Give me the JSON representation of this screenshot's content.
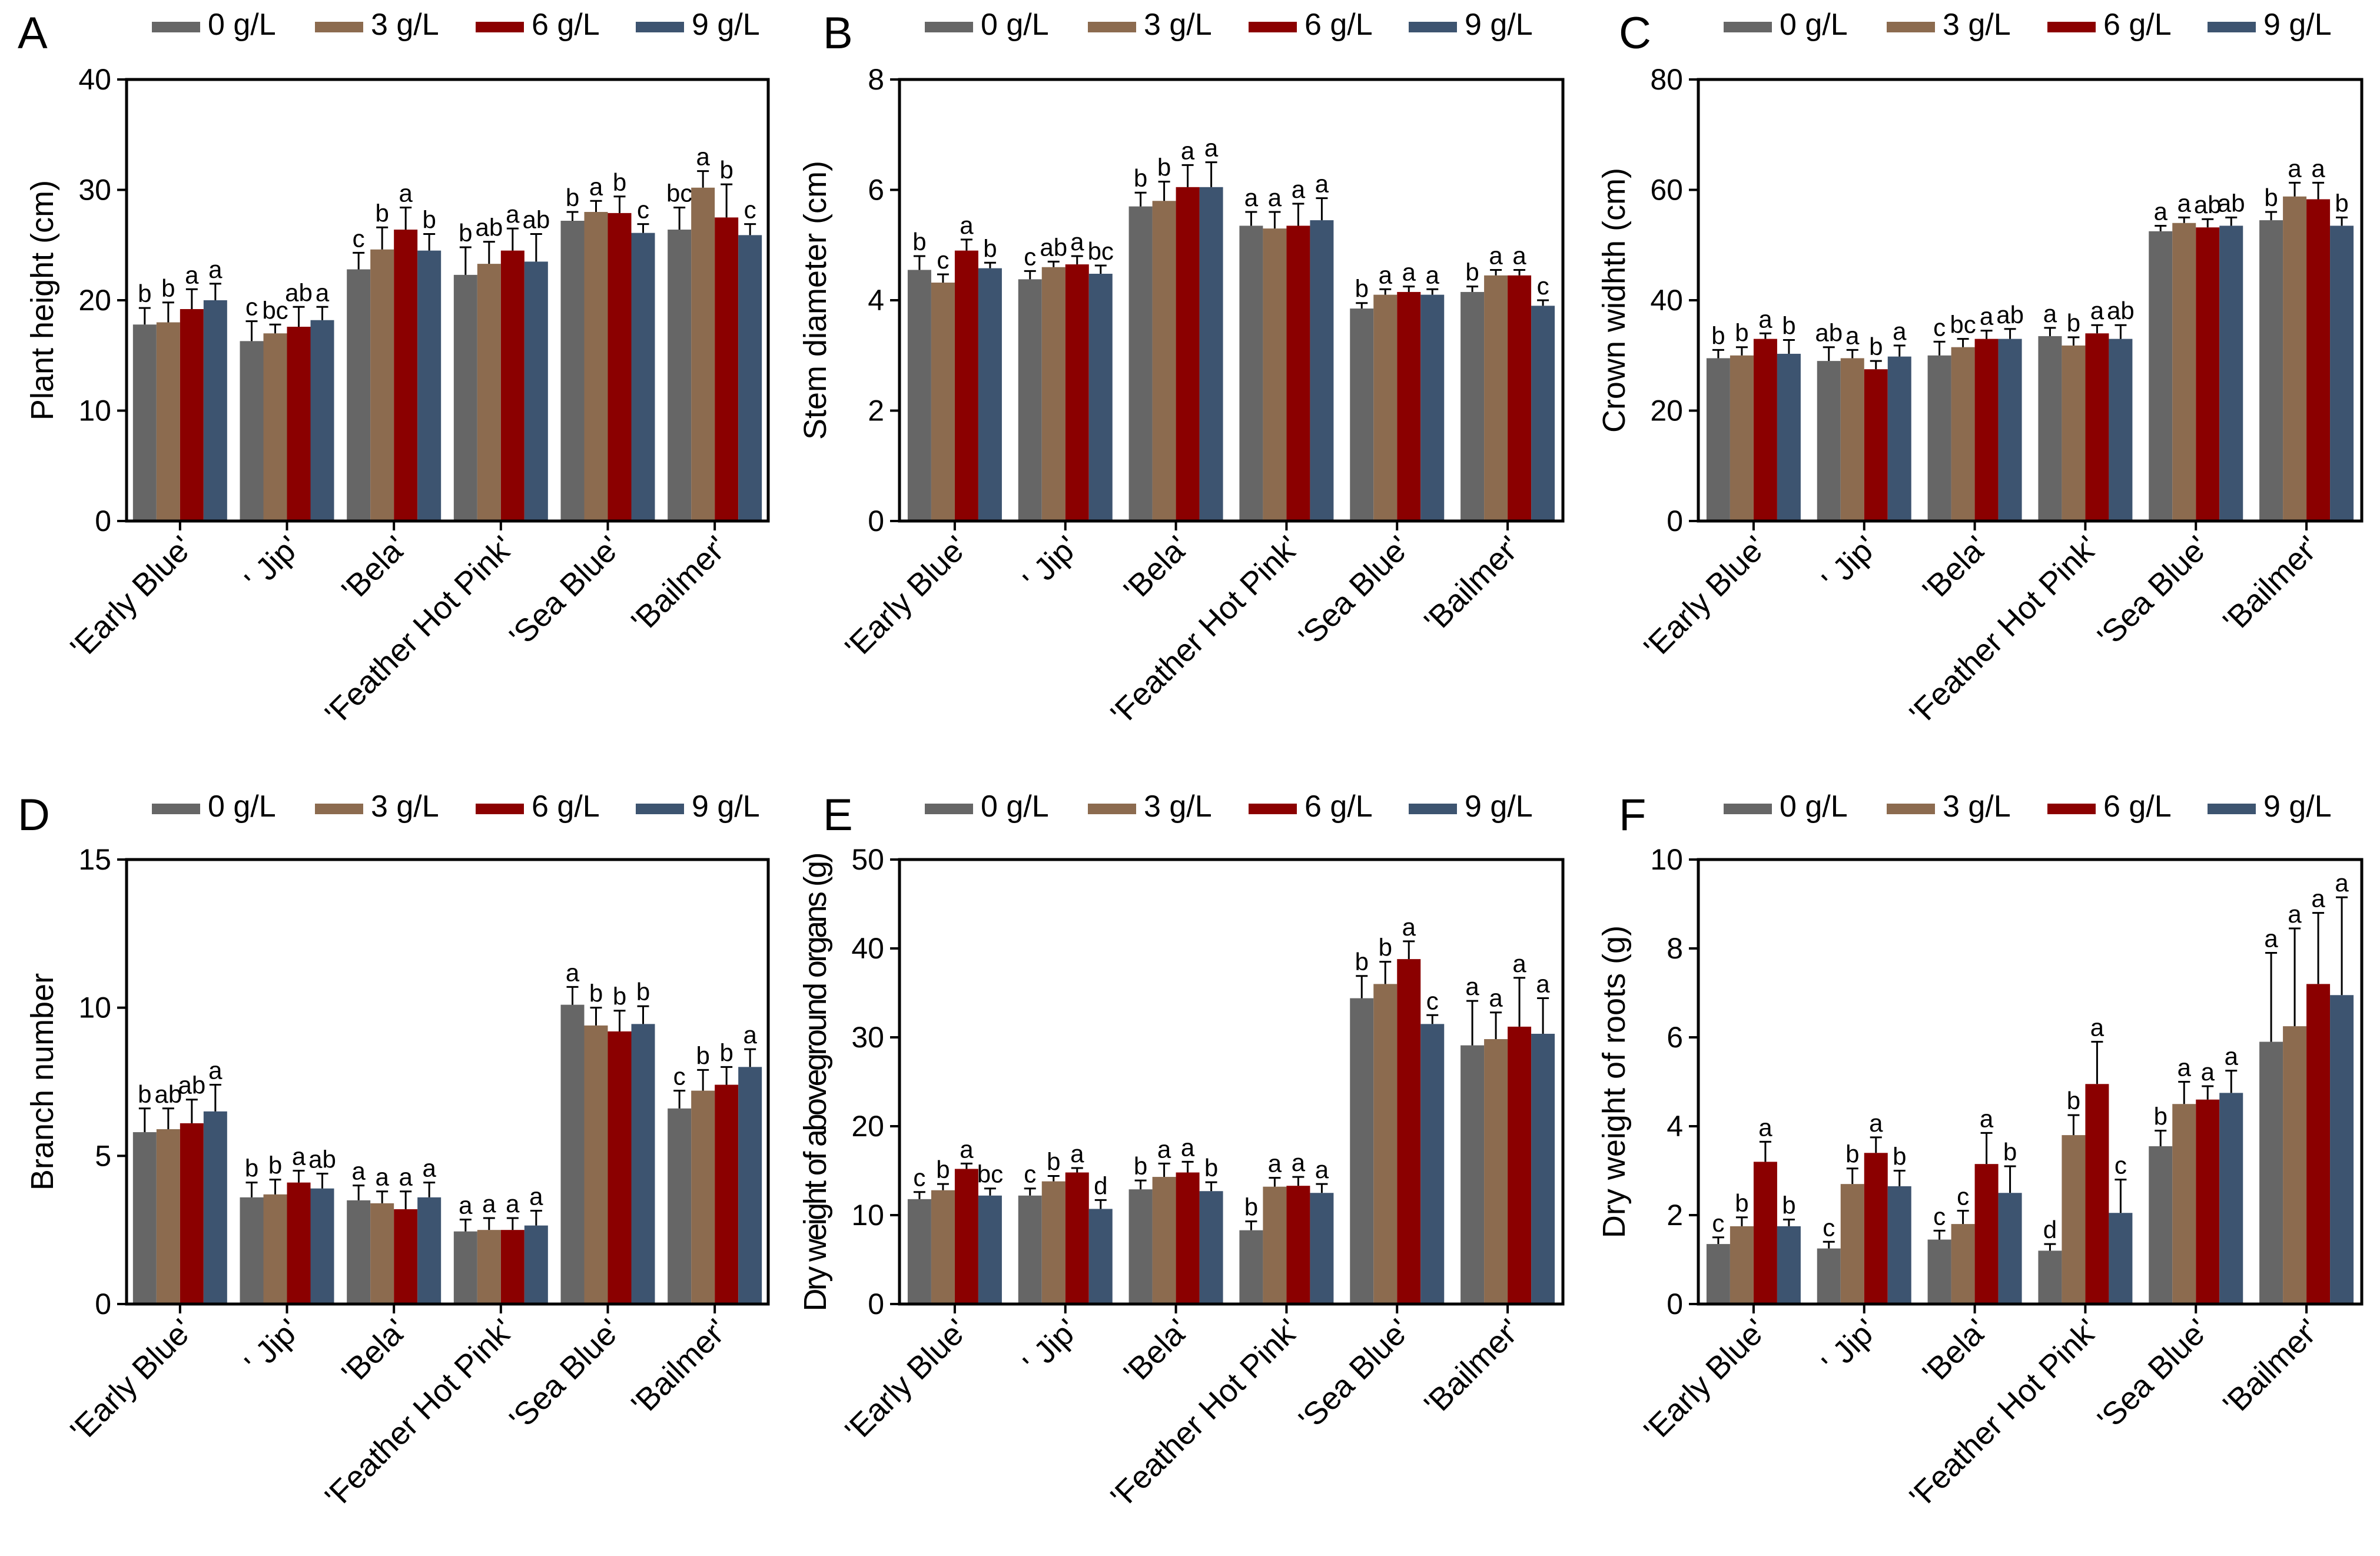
{
  "legend": [
    "0 g/L",
    "3 g/L",
    "6 g/L",
    "9 g/L"
  ],
  "series_colors": [
    "#666666",
    "#8C6B4F",
    "#8B0000",
    "#3D5470"
  ],
  "chart_data": [
    {
      "panel": "A",
      "type": "bar",
      "ylabel": "Plant height (cm)",
      "ylim": [
        0,
        40
      ],
      "yticks": [
        0,
        10,
        20,
        30,
        40
      ],
      "categories": [
        "'Early Blue'",
        "' Jip'",
        "'Bela'",
        "'Feather Hot Pink'",
        "'Sea Blue'",
        "'Bailmer'"
      ],
      "series": [
        {
          "name": "0 g/L",
          "values": [
            17.8,
            16.3,
            22.8,
            22.3,
            27.2,
            26.4
          ],
          "errors": [
            1.5,
            1.8,
            1.5,
            2.5,
            0.8,
            2.0
          ],
          "letters": [
            "b",
            "c",
            "c",
            "b",
            "b",
            "bc"
          ]
        },
        {
          "name": "3 g/L",
          "values": [
            18.0,
            17.0,
            24.6,
            23.3,
            28.0,
            30.2
          ],
          "errors": [
            1.8,
            0.8,
            2.0,
            2.0,
            1.0,
            1.5
          ],
          "letters": [
            "b",
            "bc",
            "b",
            "ab",
            "a",
            "a"
          ]
        },
        {
          "name": "6 g/L",
          "values": [
            19.2,
            17.6,
            26.4,
            24.5,
            27.9,
            27.5
          ],
          "errors": [
            1.8,
            1.8,
            2.0,
            2.0,
            1.5,
            3.0
          ],
          "letters": [
            "a",
            "ab",
            "a",
            "a",
            "b",
            "b"
          ]
        },
        {
          "name": "9 g/L",
          "values": [
            20.0,
            18.2,
            24.5,
            23.5,
            26.1,
            25.9
          ],
          "errors": [
            1.5,
            1.2,
            1.5,
            2.5,
            0.8,
            1.0
          ],
          "letters": [
            "a",
            "a",
            "b",
            "ab",
            "c",
            "c"
          ]
        }
      ]
    },
    {
      "panel": "B",
      "type": "bar",
      "ylabel": "Stem diameter  (cm)",
      "ylim": [
        0,
        8
      ],
      "yticks": [
        0,
        2,
        4,
        6,
        8
      ],
      "categories": [
        "'Early Blue'",
        "' Jip'",
        "'Bela'",
        "'Feather Hot Pink'",
        "'Sea Blue'",
        "'Bailmer'"
      ],
      "series": [
        {
          "name": "0 g/L",
          "values": [
            4.55,
            4.38,
            5.7,
            5.35,
            3.85,
            4.15
          ],
          "errors": [
            0.25,
            0.15,
            0.25,
            0.25,
            0.1,
            0.1
          ],
          "letters": [
            "b",
            "c",
            "b",
            "a",
            "b",
            "b"
          ]
        },
        {
          "name": "3 g/L",
          "values": [
            4.32,
            4.6,
            5.8,
            5.3,
            4.1,
            4.45
          ],
          "errors": [
            0.15,
            0.1,
            0.35,
            0.3,
            0.1,
            0.1
          ],
          "letters": [
            "c",
            "ab",
            "b",
            "a",
            "a",
            "a"
          ]
        },
        {
          "name": "6 g/L",
          "values": [
            4.9,
            4.65,
            6.05,
            5.35,
            4.15,
            4.45
          ],
          "errors": [
            0.2,
            0.15,
            0.4,
            0.4,
            0.1,
            0.1
          ],
          "letters": [
            "a",
            "a",
            "a",
            "a",
            "a",
            "a"
          ]
        },
        {
          "name": "9 g/L",
          "values": [
            4.58,
            4.48,
            6.05,
            5.45,
            4.1,
            3.9
          ],
          "errors": [
            0.1,
            0.15,
            0.45,
            0.4,
            0.1,
            0.1
          ],
          "letters": [
            "b",
            "bc",
            "a",
            "a",
            "a",
            "c"
          ]
        }
      ]
    },
    {
      "panel": "C",
      "type": "bar",
      "ylabel": "Crown widhth (cm)",
      "ylim": [
        0,
        80
      ],
      "yticks": [
        0,
        20,
        40,
        60,
        80
      ],
      "categories": [
        "'Early Blue'",
        "' Jip'",
        "'Bela'",
        "'Feather Hot Pink'",
        "'Sea Blue'",
        "'Bailmer'"
      ],
      "series": [
        {
          "name": "0 g/L",
          "values": [
            29.5,
            29.0,
            30.0,
            33.5,
            52.5,
            54.5
          ],
          "errors": [
            1.5,
            2.5,
            2.5,
            1.5,
            1.0,
            1.5
          ],
          "letters": [
            "b",
            "ab",
            "c",
            "a",
            "a",
            "b"
          ]
        },
        {
          "name": "3 g/L",
          "values": [
            30.0,
            29.5,
            31.5,
            31.8,
            54.0,
            58.8
          ],
          "errors": [
            1.5,
            1.5,
            1.5,
            1.5,
            1.0,
            2.5
          ],
          "letters": [
            "b",
            "a",
            "bc",
            "b",
            "a",
            "a"
          ]
        },
        {
          "name": "6 g/L",
          "values": [
            33.0,
            27.5,
            33.0,
            34.0,
            53.2,
            58.3
          ],
          "errors": [
            1.0,
            1.5,
            1.5,
            1.5,
            1.5,
            3.0
          ],
          "letters": [
            "a",
            "b",
            "a",
            "a",
            "ab",
            "a"
          ]
        },
        {
          "name": "9 g/L",
          "values": [
            30.3,
            29.8,
            33.0,
            33.0,
            53.5,
            53.5
          ],
          "errors": [
            2.5,
            2.0,
            1.8,
            2.5,
            1.5,
            1.5
          ],
          "letters": [
            "b",
            "a",
            "ab",
            "ab",
            "ab",
            "b"
          ]
        }
      ]
    },
    {
      "panel": "D",
      "type": "bar",
      "ylabel": "Branch number",
      "ylim": [
        0,
        15
      ],
      "yticks": [
        0,
        5,
        10,
        15
      ],
      "categories": [
        "'Early Blue'",
        "' Jip'",
        "'Bela'",
        "'Feather Hot Pink'",
        "'Sea Blue'",
        "'Bailmer'"
      ],
      "series": [
        {
          "name": "0 g/L",
          "values": [
            5.8,
            3.6,
            3.5,
            2.45,
            10.1,
            6.6
          ],
          "errors": [
            0.8,
            0.5,
            0.5,
            0.4,
            0.6,
            0.6
          ],
          "letters": [
            "b",
            "b",
            "a",
            "a",
            "a",
            "c"
          ]
        },
        {
          "name": "3 g/L",
          "values": [
            5.9,
            3.7,
            3.4,
            2.5,
            9.4,
            7.2
          ],
          "errors": [
            0.7,
            0.5,
            0.4,
            0.4,
            0.6,
            0.7
          ],
          "letters": [
            "ab",
            "b",
            "a",
            "a",
            "b",
            "b"
          ]
        },
        {
          "name": "6 g/L",
          "values": [
            6.1,
            4.1,
            3.2,
            2.5,
            9.2,
            7.4
          ],
          "errors": [
            0.8,
            0.4,
            0.6,
            0.4,
            0.7,
            0.6
          ],
          "letters": [
            "ab",
            "a",
            "a",
            "a",
            "b",
            "b"
          ]
        },
        {
          "name": "9 g/L",
          "values": [
            6.5,
            3.9,
            3.6,
            2.65,
            9.45,
            8.0
          ],
          "errors": [
            0.9,
            0.5,
            0.5,
            0.5,
            0.6,
            0.6
          ],
          "letters": [
            "a",
            "ab",
            "a",
            "a",
            "b",
            "a"
          ]
        }
      ]
    },
    {
      "panel": "E",
      "type": "bar",
      "ylabel": "Dry weight of aboveground organs (g)",
      "ylim": [
        0,
        50
      ],
      "yticks": [
        0,
        10,
        20,
        30,
        40,
        50
      ],
      "categories": [
        "'Early Blue'",
        "' Jip'",
        "'Bela'",
        "'Feather Hot Pink'",
        "'Sea Blue'",
        "'Bailmer'"
      ],
      "series": [
        {
          "name": "0 g/L",
          "values": [
            11.8,
            12.2,
            12.9,
            8.3,
            34.4,
            29.1
          ],
          "errors": [
            0.8,
            0.8,
            1.0,
            1.0,
            2.5,
            5.0
          ],
          "letters": [
            "c",
            "c",
            "b",
            "b",
            "b",
            "a"
          ]
        },
        {
          "name": "3 g/L",
          "values": [
            12.8,
            13.8,
            14.3,
            13.2,
            36.0,
            29.8
          ],
          "errors": [
            0.7,
            0.6,
            1.5,
            1.0,
            2.5,
            3.0
          ],
          "letters": [
            "b",
            "b",
            "a",
            "a",
            "b",
            "a"
          ]
        },
        {
          "name": "6 g/L",
          "values": [
            15.2,
            14.8,
            14.8,
            13.3,
            38.8,
            31.2
          ],
          "errors": [
            0.6,
            0.5,
            1.2,
            1.0,
            2.0,
            5.5
          ],
          "letters": [
            "a",
            "a",
            "a",
            "a",
            "a",
            "a"
          ]
        },
        {
          "name": "9 g/L",
          "values": [
            12.2,
            10.7,
            12.7,
            12.5,
            31.5,
            30.4
          ],
          "errors": [
            0.8,
            1.0,
            1.0,
            1.0,
            1.0,
            4.0
          ],
          "letters": [
            "bc",
            "d",
            "b",
            "a",
            "c",
            "a"
          ]
        }
      ]
    },
    {
      "panel": "F",
      "type": "bar",
      "ylabel": "Dry weight of roots (g)",
      "ylim": [
        0,
        10
      ],
      "yticks": [
        0,
        2,
        4,
        6,
        8,
        10
      ],
      "categories": [
        "'Early Blue'",
        "' Jip'",
        "'Bela'",
        "'Feather Hot Pink'",
        "'Sea Blue'",
        "'Bailmer'"
      ],
      "series": [
        {
          "name": "0 g/L",
          "values": [
            1.35,
            1.25,
            1.45,
            1.2,
            3.55,
            5.9
          ],
          "errors": [
            0.15,
            0.15,
            0.2,
            0.15,
            0.35,
            2.0
          ],
          "letters": [
            "c",
            "c",
            "c",
            "d",
            "b",
            "a"
          ]
        },
        {
          "name": "3 g/L",
          "values": [
            1.75,
            2.7,
            1.8,
            3.8,
            4.5,
            6.25
          ],
          "errors": [
            0.2,
            0.35,
            0.3,
            0.45,
            0.5,
            2.2
          ],
          "letters": [
            "b",
            "b",
            "c",
            "b",
            "a",
            "a"
          ]
        },
        {
          "name": "6 g/L",
          "values": [
            3.2,
            3.4,
            3.15,
            4.95,
            4.6,
            7.2
          ],
          "errors": [
            0.45,
            0.35,
            0.7,
            0.95,
            0.3,
            1.6
          ],
          "letters": [
            "a",
            "a",
            "a",
            "a",
            "a",
            "a"
          ]
        },
        {
          "name": "9 g/L",
          "values": [
            1.75,
            2.65,
            2.5,
            2.05,
            4.75,
            6.95
          ],
          "errors": [
            0.15,
            0.35,
            0.6,
            0.75,
            0.5,
            2.2
          ],
          "letters": [
            "b",
            "b",
            "b",
            "c",
            "a",
            "a"
          ]
        }
      ]
    }
  ]
}
